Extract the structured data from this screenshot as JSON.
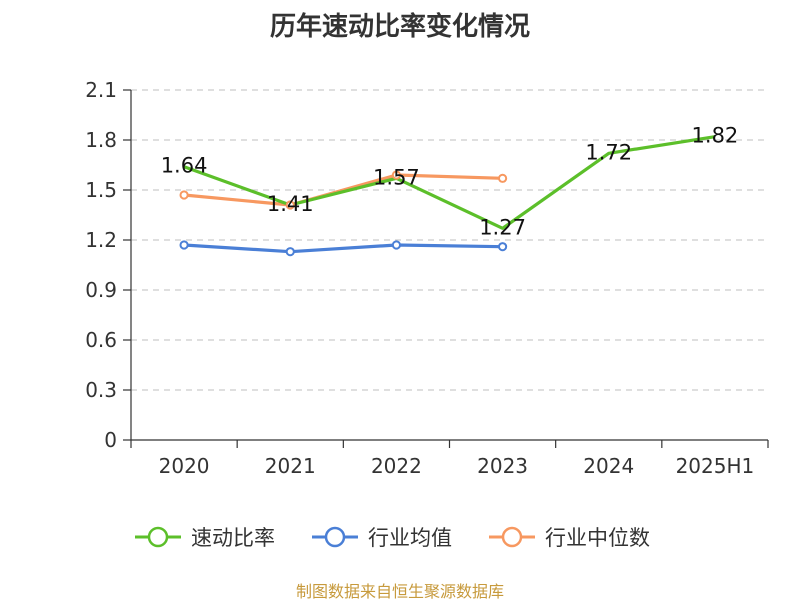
{
  "chart_data": {
    "type": "line",
    "title": "历年速动比率变化情况",
    "categories": [
      "2020",
      "2021",
      "2022",
      "2023",
      "2024",
      "2025H1"
    ],
    "ylim": [
      0,
      2.1
    ],
    "yticks": [
      "0",
      "0.3",
      "0.6",
      "0.9",
      "1.2",
      "1.5",
      "1.8",
      "2.1"
    ],
    "grid": true,
    "legend_position": "bottom",
    "series": [
      {
        "name": "速动比率",
        "color": "#5cbf2a",
        "values": [
          1.64,
          1.41,
          1.57,
          1.27,
          1.72,
          1.82
        ],
        "labels": [
          "1.64",
          "1.41",
          "1.57",
          "1.27",
          "1.72",
          "1.82"
        ],
        "show_markers": false
      },
      {
        "name": "行业均值",
        "color": "#4a7fd6",
        "values": [
          1.17,
          1.13,
          1.17,
          1.16,
          null,
          null
        ],
        "show_markers": true
      },
      {
        "name": "行业中位数",
        "color": "#f79860",
        "values": [
          1.47,
          1.41,
          1.59,
          1.57,
          null,
          null
        ],
        "show_markers": true
      }
    ]
  },
  "source_text": "制图数据来自恒生聚源数据库",
  "source_color": "#c79a3c"
}
